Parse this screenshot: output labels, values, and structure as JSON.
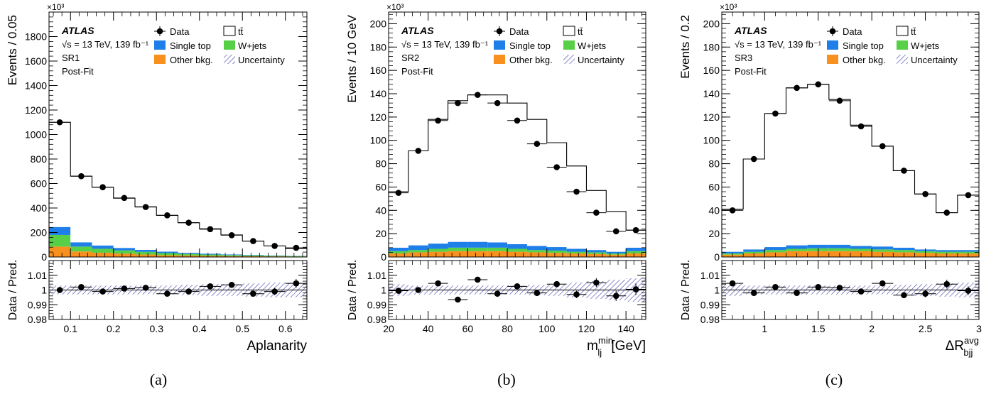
{
  "chart_data": [
    {
      "type": "bar",
      "panel_label": "(a)",
      "region": "SR1",
      "fit_label": "Post-Fit",
      "experiment": "ATLAS",
      "energy_label": "√s = 13 TeV, 139 fb⁻¹",
      "ylabel": "Events / 0.05",
      "y_multiplier": "×10³",
      "ylim": [
        0,
        2000
      ],
      "yticks": [
        0,
        200,
        400,
        600,
        800,
        1000,
        1200,
        1400,
        1600,
        1800
      ],
      "xlabel": "Aplanarity",
      "xlim": [
        0.05,
        0.65
      ],
      "xticks": [
        0.1,
        0.2,
        0.3,
        0.4,
        0.5,
        0.6
      ],
      "bin_edges": [
        0.05,
        0.1,
        0.15,
        0.2,
        0.25,
        0.3,
        0.35,
        0.4,
        0.45,
        0.5,
        0.55,
        0.6,
        0.65
      ],
      "series": [
        {
          "name": "Other bkg.",
          "values": [
            85,
            45,
            35,
            27,
            20,
            15,
            12,
            9,
            7,
            6,
            5,
            4
          ]
        },
        {
          "name": "W+jets",
          "values": [
            95,
            40,
            32,
            27,
            22,
            17,
            13,
            11,
            9,
            7,
            5,
            4
          ]
        },
        {
          "name": "Single top",
          "values": [
            65,
            35,
            27,
            20,
            16,
            12,
            9,
            7,
            5,
            4,
            3,
            2
          ]
        },
        {
          "name": "tt̄",
          "values": [
            855,
            540,
            476,
            406,
            352,
            296,
            246,
            203,
            159,
            113,
            77,
            60
          ]
        }
      ],
      "data_points": [
        1100,
        660,
        570,
        482,
        408,
        340,
        280,
        227,
        178,
        130,
        90,
        75
      ],
      "ratio": {
        "ylabel": "Data / Pred.",
        "ylim": [
          0.98,
          1.02
        ],
        "yticks": [
          0.98,
          0.99,
          1,
          1.01
        ],
        "ytick_labels": [
          "0.98",
          "0.99",
          "1",
          "1.01"
        ],
        "values": [
          1.0,
          1.002,
          0.999,
          1.001,
          1.0015,
          0.9975,
          0.999,
          1.0025,
          1.0035,
          0.9975,
          0.999,
          1.0045
        ],
        "errors": [
          0.001,
          0.001,
          0.001,
          0.001,
          0.001,
          0.0015,
          0.0015,
          0.0015,
          0.002,
          0.002,
          0.0025,
          0.003
        ],
        "band": [
          0.003,
          0.003,
          0.003,
          0.003,
          0.003,
          0.003,
          0.0035,
          0.004,
          0.004,
          0.0045,
          0.005,
          0.005
        ]
      }
    },
    {
      "type": "bar",
      "panel_label": "(b)",
      "region": "SR2",
      "fit_label": "Post-Fit",
      "experiment": "ATLAS",
      "energy_label": "√s = 13 TeV, 139 fb⁻¹",
      "ylabel": "Events / 10 GeV",
      "y_multiplier": "×10³",
      "ylim": [
        0,
        210
      ],
      "yticks": [
        0,
        20,
        40,
        60,
        80,
        100,
        120,
        140,
        160,
        180,
        200
      ],
      "xlabel_main": "m",
      "xlabel_sub": "lj",
      "xlabel_sup": "min",
      "xlabel_unit": " [GeV]",
      "xlim": [
        20,
        150
      ],
      "xticks": [
        20,
        40,
        60,
        80,
        100,
        120,
        140
      ],
      "bin_edges": [
        20,
        30,
        40,
        50,
        60,
        70,
        80,
        90,
        100,
        110,
        120,
        130,
        140,
        150
      ],
      "series": [
        {
          "name": "Other bkg.",
          "values": [
            3,
            4,
            4.5,
            5,
            5,
            5,
            4.5,
            4,
            3.5,
            3,
            2.5,
            2,
            3
          ]
        },
        {
          "name": "W+jets",
          "values": [
            2,
            2,
            2.5,
            3,
            3,
            3,
            2.5,
            2,
            2,
            1.5,
            1.5,
            1,
            2
          ]
        },
        {
          "name": "Single top",
          "values": [
            3,
            4,
            4.5,
            5,
            5,
            4.5,
            4,
            3.5,
            3,
            2.5,
            2,
            1.5,
            3
          ]
        },
        {
          "name": "tt̄",
          "values": [
            48,
            81,
            106.5,
            121,
            126,
            126.5,
            121,
            108.5,
            89.5,
            71,
            51,
            34.5,
            15
          ]
        }
      ],
      "data_points": [
        55,
        91,
        117,
        132,
        139,
        132,
        117,
        97,
        77,
        56,
        38,
        22,
        23
      ],
      "ratio": {
        "ylabel": "Data / Pred.",
        "ylim": [
          0.98,
          1.02
        ],
        "yticks": [
          0.98,
          0.99,
          1,
          1.01
        ],
        "ytick_labels": [
          "0.98",
          "0.99",
          "1",
          "1.01"
        ],
        "values": [
          0.9995,
          1.0,
          1.0045,
          0.9935,
          1.007,
          0.9975,
          1.0025,
          0.998,
          1.004,
          0.997,
          1.005,
          0.996,
          1.0005
        ],
        "errors": [
          0.002,
          0.0015,
          0.0015,
          0.0015,
          0.0015,
          0.0015,
          0.0015,
          0.002,
          0.002,
          0.0025,
          0.003,
          0.0035,
          0.004
        ],
        "band": [
          0.004,
          0.003,
          0.003,
          0.003,
          0.003,
          0.003,
          0.003,
          0.0035,
          0.004,
          0.005,
          0.006,
          0.007,
          0.008
        ]
      }
    },
    {
      "type": "bar",
      "panel_label": "(c)",
      "region": "SR3",
      "fit_label": "Post-Fit",
      "experiment": "ATLAS",
      "energy_label": "√s = 13 TeV, 139 fb⁻¹",
      "ylabel": "Events / 0.2",
      "y_multiplier": "×10³",
      "ylim": [
        0,
        210
      ],
      "yticks": [
        0,
        20,
        40,
        60,
        80,
        100,
        120,
        140,
        160,
        180,
        200
      ],
      "xlabel_main": "ΔR",
      "xlabel_sub": "bjj",
      "xlabel_sup": "avg",
      "xlabel_unit": "",
      "xlim": [
        0.6,
        3.0
      ],
      "xticks": [
        1,
        1.5,
        2,
        2.5,
        3
      ],
      "bin_edges": [
        0.6,
        0.8,
        1.0,
        1.2,
        1.4,
        1.6,
        1.8,
        2.0,
        2.2,
        2.4,
        2.6,
        2.8,
        3.0
      ],
      "series": [
        {
          "name": "Other bkg.",
          "values": [
            2,
            3,
            4,
            5,
            5,
            5,
            5,
            4.5,
            4,
            3.5,
            3,
            3
          ]
        },
        {
          "name": "W+jets",
          "values": [
            1,
            1.5,
            2,
            2,
            2.5,
            2.5,
            2,
            2,
            2,
            1.5,
            1.5,
            1.5
          ]
        },
        {
          "name": "Single top",
          "values": [
            1.5,
            2,
            2.5,
            3,
            3,
            3,
            2.5,
            2.5,
            2,
            1.5,
            1.5,
            1.5
          ]
        },
        {
          "name": "tt̄",
          "values": [
            36.5,
            77.5,
            114.5,
            135,
            137.5,
            124.5,
            103.5,
            86,
            66,
            47.5,
            32,
            47
          ]
        }
      ],
      "data_points": [
        40,
        84,
        123,
        145,
        148,
        134,
        112,
        95,
        74,
        54,
        38,
        53
      ],
      "ratio": {
        "ylabel": "Data / Pred.",
        "ylim": [
          0.98,
          1.02
        ],
        "yticks": [
          0.98,
          0.99,
          1,
          1.01
        ],
        "ytick_labels": [
          "0.98",
          "0.99",
          "1",
          "1.01"
        ],
        "values": [
          1.0045,
          0.998,
          1.002,
          0.998,
          1.002,
          1.0015,
          0.999,
          1.0045,
          0.9965,
          0.9975,
          1.004,
          0.9995
        ],
        "errors": [
          0.002,
          0.0015,
          0.0015,
          0.0015,
          0.0015,
          0.0015,
          0.0015,
          0.0015,
          0.002,
          0.0025,
          0.003,
          0.003
        ],
        "band": [
          0.004,
          0.003,
          0.003,
          0.003,
          0.003,
          0.003,
          0.003,
          0.003,
          0.0035,
          0.004,
          0.0045,
          0.005
        ]
      }
    }
  ],
  "legend": {
    "data_label": "Data",
    "ttbar_label": "tt̄",
    "single_top_label": "Single top",
    "wjets_label": "W+jets",
    "other_label": "Other bkg.",
    "uncertainty_label": "Uncertainty"
  },
  "colors": {
    "single_top": "#1f7fe8",
    "wjets": "#57d047",
    "other": "#f7901e",
    "ttbar": "#ffffff",
    "uncertainty": "#3f3fa8"
  }
}
